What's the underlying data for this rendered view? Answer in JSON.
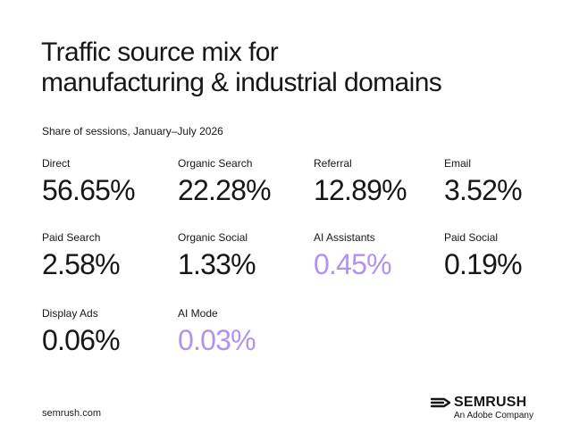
{
  "header": {
    "title_line1": "Traffic source mix for",
    "title_line2": "manufacturing & industrial domains",
    "subtitle": "Share of sessions, January–July 2026"
  },
  "chart_data": {
    "type": "table",
    "title": "Traffic source mix for manufacturing & industrial domains",
    "subtitle": "Share of sessions, January–July 2026",
    "unit": "%",
    "categories": [
      "Direct",
      "Organic Search",
      "Referral",
      "Email",
      "Paid Search",
      "Organic Social",
      "AI Assistants",
      "Paid Social",
      "Display Ads",
      "AI Mode"
    ],
    "values": [
      56.65,
      22.28,
      12.89,
      3.52,
      2.58,
      1.33,
      0.45,
      0.19,
      0.06,
      0.03
    ],
    "display_values": [
      "56.65%",
      "22.28%",
      "12.89%",
      "3.52%",
      "2.58%",
      "1.33%",
      "0.45%",
      "0.19%",
      "0.06%",
      "0.03%"
    ],
    "highlighted": [
      "AI Assistants",
      "AI Mode"
    ],
    "colors": {
      "default": "#171717",
      "highlight": "#b192f0"
    }
  },
  "footer": {
    "url": "semrush.com",
    "brand_name": "SEMRUSH",
    "brand_tagline": "An Adobe Company",
    "brand_icon": "semrush-logo-icon"
  }
}
